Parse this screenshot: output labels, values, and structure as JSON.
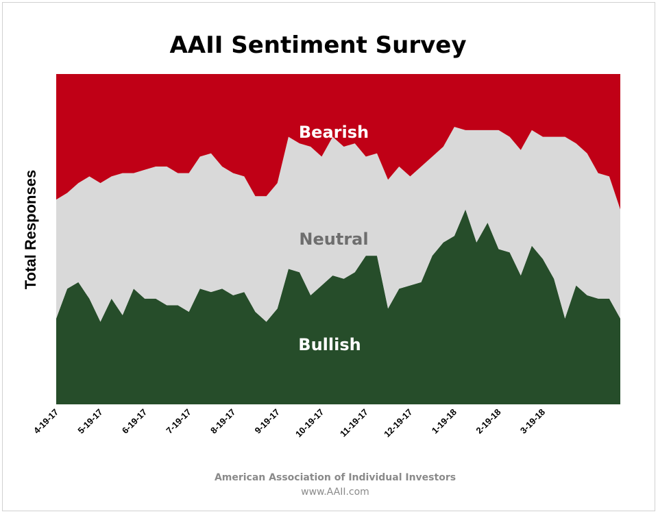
{
  "chart_data": {
    "type": "area",
    "stacked": true,
    "title": "AAII Sentiment Survey",
    "xlabel": "",
    "ylabel": "Total Responses",
    "ylim": [
      0,
      100
    ],
    "grid": false,
    "legend": "none",
    "x_ticks": [
      "4-19-17",
      "5-19-17",
      "6-19-17",
      "7-19-17",
      "8-19-17",
      "9-19-17",
      "10-19-17",
      "11-19-17",
      "12-19-17",
      "1-19-18",
      "2-19-18",
      "3-19-18"
    ],
    "x_tick_index": [
      0,
      4,
      8,
      12,
      16,
      20,
      24,
      28,
      32,
      36,
      40,
      44
    ],
    "series": [
      {
        "name": "Bullish",
        "color": "#264d2a",
        "values": [
          26,
          35,
          37,
          32,
          25,
          32,
          27,
          35,
          32,
          32,
          30,
          30,
          28,
          35,
          34,
          35,
          33,
          34,
          28,
          25,
          29,
          41,
          40,
          33,
          36,
          39,
          38,
          40,
          45,
          45,
          29,
          35,
          36,
          37,
          45,
          49,
          51,
          59,
          49,
          55,
          47,
          46,
          39,
          48,
          44,
          38,
          26,
          36,
          33,
          32,
          32,
          26
        ]
      },
      {
        "name": "Neutral",
        "color": "#d9d9d9",
        "values": [
          36,
          29,
          30,
          37,
          42,
          37,
          43,
          35,
          39,
          40,
          42,
          40,
          42,
          40,
          42,
          37,
          37,
          35,
          35,
          38,
          38,
          40,
          39,
          45,
          39,
          42,
          40,
          39,
          30,
          31,
          39,
          37,
          33,
          35,
          30,
          29,
          33,
          24,
          34,
          28,
          36,
          35,
          38,
          35,
          37,
          43,
          55,
          43,
          43,
          38,
          37,
          33
        ]
      },
      {
        "name": "Bearish",
        "color": "#c00016",
        "values": [
          38,
          36,
          33,
          31,
          33,
          31,
          30,
          30,
          29,
          28,
          28,
          30,
          30,
          25,
          24,
          28,
          30,
          31,
          37,
          37,
          33,
          19,
          21,
          22,
          25,
          19,
          22,
          21,
          25,
          24,
          32,
          28,
          31,
          28,
          25,
          22,
          16,
          17,
          17,
          17,
          17,
          19,
          23,
          17,
          19,
          19,
          19,
          21,
          24,
          30,
          31,
          41
        ]
      }
    ],
    "annotations": [
      "Bearish",
      "Neutral",
      "Bullish"
    ]
  },
  "footer": {
    "org": "American Association of Individual Investors",
    "url": "www.AAII.com"
  }
}
